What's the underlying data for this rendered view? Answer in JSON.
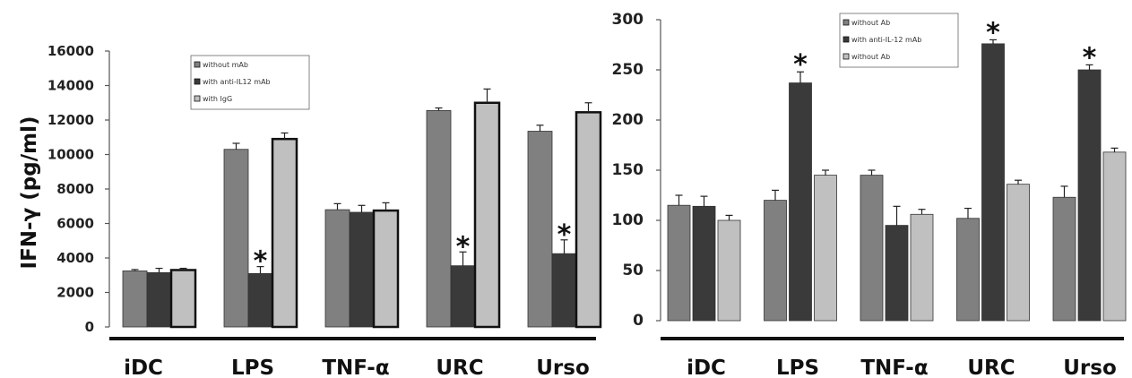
{
  "chart_data": [
    {
      "type": "bar",
      "ylabel": "IFN-γ (pg/ml)",
      "categories": [
        "iDC",
        "LPS",
        "TNF-α",
        "URC",
        "Urso"
      ],
      "ylim": [
        0,
        16000
      ],
      "yticks": [
        0,
        2000,
        4000,
        6000,
        8000,
        10000,
        12000,
        14000,
        16000
      ],
      "legend_position": "top-left",
      "grid": false,
      "colors": [
        "#808080",
        "#3a3a3a",
        "#c0c0c0"
      ],
      "series": [
        {
          "name": "without mAb",
          "values": [
            3250,
            10300,
            6800,
            12550,
            11350
          ],
          "errors": [
            80,
            350,
            350,
            150,
            350
          ]
        },
        {
          "name": "with anti-IL12 mAb",
          "values": [
            3150,
            3100,
            6650,
            3550,
            4250
          ],
          "errors": [
            250,
            400,
            400,
            800,
            800
          ]
        },
        {
          "name": "with IgG",
          "values": [
            3300,
            10900,
            6750,
            13000,
            12450
          ],
          "errors": [
            100,
            350,
            450,
            800,
            550
          ]
        }
      ],
      "annotations": [
        {
          "text": "*",
          "category": "LPS",
          "series": 1
        },
        {
          "text": "*",
          "category": "URC",
          "series": 1
        },
        {
          "text": "*",
          "category": "Urso",
          "series": 1
        }
      ]
    },
    {
      "type": "bar",
      "categories": [
        "iDC",
        "LPS",
        "TNF-α",
        "URC",
        "Urso"
      ],
      "ylim": [
        0,
        300
      ],
      "yticks": [
        0,
        50,
        100,
        150,
        200,
        250,
        300
      ],
      "legend_position": "top-left",
      "grid": false,
      "colors": [
        "#808080",
        "#3a3a3a",
        "#c0c0c0"
      ],
      "series": [
        {
          "name": "without Ab",
          "values": [
            115,
            120,
            145,
            102,
            123
          ],
          "errors": [
            10,
            10,
            5,
            10,
            11
          ]
        },
        {
          "name": "with anti-IL-12 mAb",
          "values": [
            114,
            237,
            95,
            276,
            250
          ],
          "errors": [
            10,
            11,
            19,
            4,
            5
          ]
        },
        {
          "name": "without Ab",
          "values": [
            100,
            145,
            106,
            136,
            168
          ],
          "errors": [
            5,
            5,
            5,
            4,
            4
          ]
        }
      ],
      "annotations": [
        {
          "text": "*",
          "category": "LPS",
          "series": 1
        },
        {
          "text": "*",
          "category": "URC",
          "series": 1
        },
        {
          "text": "*",
          "category": "Urso",
          "series": 1
        }
      ]
    }
  ]
}
